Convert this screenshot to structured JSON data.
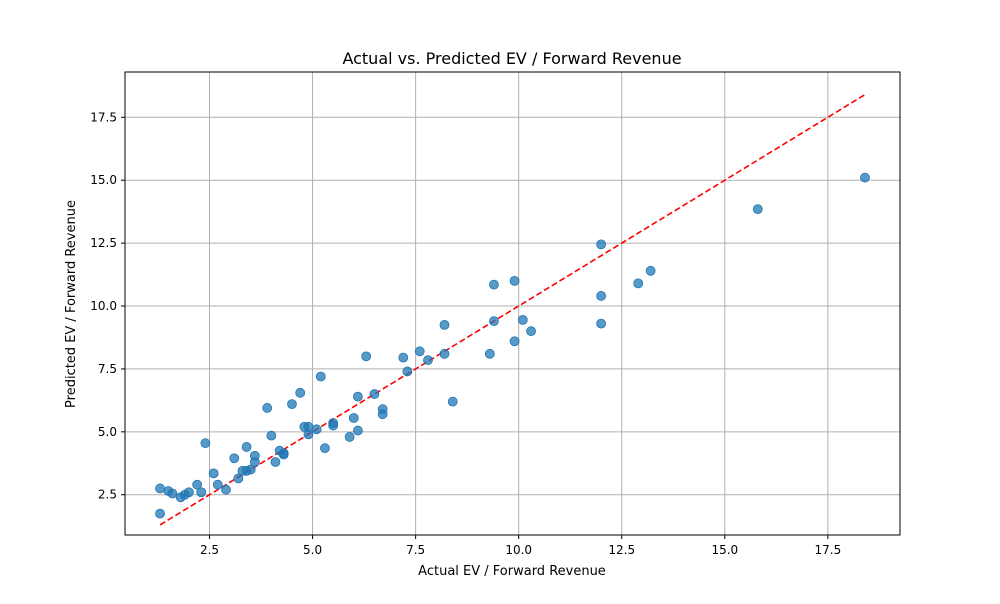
{
  "chart_data": {
    "type": "scatter",
    "title": "Actual vs. Predicted EV / Forward Revenue",
    "xlabel": "Actual EV / Forward Revenue",
    "ylabel": "Predicted EV / Forward Revenue",
    "xlim": [
      0.45,
      19.25
    ],
    "ylim": [
      0.9,
      19.3
    ],
    "xticks": [
      2.5,
      5.0,
      7.5,
      10.0,
      12.5,
      15.0,
      17.5
    ],
    "xtick_labels": [
      "2.5",
      "5.0",
      "7.5",
      "10.0",
      "12.5",
      "15.0",
      "17.5"
    ],
    "yticks": [
      2.5,
      5.0,
      7.5,
      10.0,
      12.5,
      15.0,
      17.5
    ],
    "ytick_labels": [
      "2.5",
      "5.0",
      "7.5",
      "10.0",
      "12.5",
      "15.0",
      "17.5"
    ],
    "grid": true,
    "point_color": "#1f77b4",
    "reference_line": {
      "x": [
        1.3,
        18.4
      ],
      "y": [
        1.3,
        18.4
      ],
      "style": "dashed",
      "color": "#ff0000"
    },
    "points": [
      {
        "x": 1.3,
        "y": 2.75
      },
      {
        "x": 1.3,
        "y": 1.75
      },
      {
        "x": 1.5,
        "y": 2.65
      },
      {
        "x": 1.6,
        "y": 2.55
      },
      {
        "x": 1.8,
        "y": 2.4
      },
      {
        "x": 1.9,
        "y": 2.5
      },
      {
        "x": 2.0,
        "y": 2.6
      },
      {
        "x": 2.2,
        "y": 2.9
      },
      {
        "x": 2.3,
        "y": 2.6
      },
      {
        "x": 2.4,
        "y": 4.55
      },
      {
        "x": 2.6,
        "y": 3.35
      },
      {
        "x": 2.7,
        "y": 2.9
      },
      {
        "x": 2.9,
        "y": 2.7
      },
      {
        "x": 3.1,
        "y": 3.95
      },
      {
        "x": 3.2,
        "y": 3.15
      },
      {
        "x": 3.3,
        "y": 3.45
      },
      {
        "x": 3.4,
        "y": 4.4
      },
      {
        "x": 3.4,
        "y": 3.45
      },
      {
        "x": 3.5,
        "y": 3.5
      },
      {
        "x": 3.6,
        "y": 4.05
      },
      {
        "x": 3.6,
        "y": 3.8
      },
      {
        "x": 3.9,
        "y": 5.95
      },
      {
        "x": 4.0,
        "y": 4.85
      },
      {
        "x": 4.1,
        "y": 3.8
      },
      {
        "x": 4.2,
        "y": 4.25
      },
      {
        "x": 4.3,
        "y": 4.15
      },
      {
        "x": 4.3,
        "y": 4.1
      },
      {
        "x": 4.5,
        "y": 6.1
      },
      {
        "x": 4.7,
        "y": 6.55
      },
      {
        "x": 4.8,
        "y": 5.2
      },
      {
        "x": 4.9,
        "y": 5.2
      },
      {
        "x": 4.9,
        "y": 4.9
      },
      {
        "x": 5.1,
        "y": 5.1
      },
      {
        "x": 5.2,
        "y": 7.2
      },
      {
        "x": 5.3,
        "y": 4.35
      },
      {
        "x": 5.5,
        "y": 5.35
      },
      {
        "x": 5.5,
        "y": 5.25
      },
      {
        "x": 5.9,
        "y": 4.8
      },
      {
        "x": 6.0,
        "y": 5.55
      },
      {
        "x": 6.1,
        "y": 6.4
      },
      {
        "x": 6.1,
        "y": 5.05
      },
      {
        "x": 6.3,
        "y": 8.0
      },
      {
        "x": 6.5,
        "y": 6.5
      },
      {
        "x": 6.7,
        "y": 5.9
      },
      {
        "x": 6.7,
        "y": 5.7
      },
      {
        "x": 7.2,
        "y": 7.95
      },
      {
        "x": 7.3,
        "y": 7.4
      },
      {
        "x": 7.6,
        "y": 8.2
      },
      {
        "x": 7.8,
        "y": 7.85
      },
      {
        "x": 8.2,
        "y": 9.25
      },
      {
        "x": 8.2,
        "y": 8.1
      },
      {
        "x": 8.4,
        "y": 6.2
      },
      {
        "x": 9.3,
        "y": 8.1
      },
      {
        "x": 9.4,
        "y": 10.85
      },
      {
        "x": 9.4,
        "y": 9.4
      },
      {
        "x": 9.9,
        "y": 11.0
      },
      {
        "x": 9.9,
        "y": 8.6
      },
      {
        "x": 10.1,
        "y": 9.45
      },
      {
        "x": 10.3,
        "y": 9.0
      },
      {
        "x": 12.0,
        "y": 12.45
      },
      {
        "x": 12.0,
        "y": 10.4
      },
      {
        "x": 12.0,
        "y": 9.3
      },
      {
        "x": 12.9,
        "y": 10.9
      },
      {
        "x": 13.2,
        "y": 11.4
      },
      {
        "x": 15.8,
        "y": 13.85
      },
      {
        "x": 18.4,
        "y": 15.1
      }
    ]
  }
}
